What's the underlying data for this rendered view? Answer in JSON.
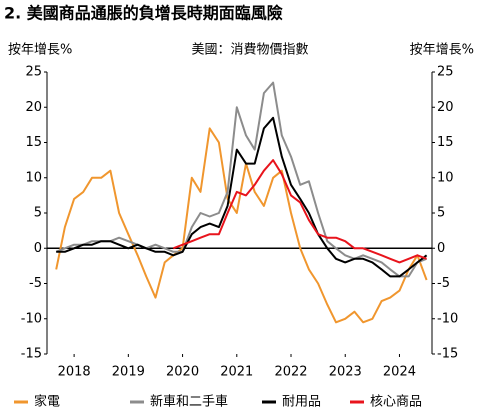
{
  "chart_data": {
    "type": "line",
    "title": "2. 美國商品通脹的負增長時期面臨風險",
    "subtitle": "美國：消費物價指數",
    "ylabel": "按年增長%",
    "y2label": "按年增長%",
    "x": [
      2018.17,
      2018.33,
      2018.5,
      2018.67,
      2018.83,
      2019,
      2019.17,
      2019.33,
      2019.5,
      2019.67,
      2019.83,
      2020,
      2020.17,
      2020.33,
      2020.5,
      2020.67,
      2020.83,
      2021,
      2021.17,
      2021.33,
      2021.5,
      2021.67,
      2021.83,
      2022,
      2022.17,
      2022.33,
      2022.5,
      2022.67,
      2022.83,
      2023,
      2023.17,
      2023.33,
      2023.5,
      2023.67,
      2023.83,
      2024,
      2024.17,
      2024.33,
      2024.5,
      2024.67,
      2024.83,
      2025
    ],
    "xlim": [
      2018,
      2025.1
    ],
    "xticks": [
      {
        "value": 2018.5,
        "label": "2018"
      },
      {
        "value": 2019.5,
        "label": "2019"
      },
      {
        "value": 2020.5,
        "label": "2020"
      },
      {
        "value": 2021.5,
        "label": "2021"
      },
      {
        "value": 2022.5,
        "label": "2022"
      },
      {
        "value": 2023.5,
        "label": "2023"
      },
      {
        "value": 2024.5,
        "label": "2024"
      }
    ],
    "ylim": [
      -15,
      25
    ],
    "yticks": [
      -15,
      -10,
      -5,
      0,
      5,
      10,
      15,
      20,
      25
    ],
    "y2lim": [
      -15,
      25
    ],
    "y2ticks": [
      -15,
      -10,
      -5,
      0,
      5,
      10,
      15,
      20,
      25
    ],
    "legend": "bottom",
    "series": [
      {
        "name": "家電",
        "color": "#f0962e",
        "values": [
          -3,
          3,
          7,
          8,
          10,
          10,
          11,
          5,
          2,
          -1,
          -4,
          -7,
          -2,
          -1,
          0,
          10,
          8,
          17,
          15,
          7,
          5,
          12,
          8,
          6,
          10,
          11,
          5,
          0,
          -3,
          -5,
          -8,
          -10.5,
          -10,
          -9,
          -10.5,
          -10,
          -7.5,
          -7,
          -6,
          -3,
          -1,
          -4.5
        ]
      },
      {
        "name": "新車和二手車",
        "color": "#8c8c8c",
        "values": [
          -0.5,
          0,
          0.5,
          0.5,
          1,
          1,
          1,
          1.5,
          1,
          0.5,
          0,
          0.5,
          0,
          -0.5,
          -0.5,
          3,
          5,
          4.5,
          5,
          8,
          20,
          16,
          14,
          22,
          23.5,
          16,
          13,
          9,
          9.5,
          5,
          1,
          0,
          -1,
          -1.5,
          -1,
          -1.5,
          -2,
          -3,
          -4,
          -4,
          -2,
          -1.5
        ]
      },
      {
        "name": "耐用品",
        "color": "#000000",
        "values": [
          -0.5,
          -0.5,
          0,
          0.5,
          0.5,
          1,
          1,
          0.5,
          0,
          0.5,
          0,
          -0.5,
          -0.5,
          -1,
          -0.5,
          2,
          3,
          3.5,
          3,
          6,
          14,
          12,
          12,
          17,
          18.5,
          13,
          9,
          7,
          5,
          2,
          0,
          -1.5,
          -2,
          -1.5,
          -1.5,
          -2,
          -3,
          -4,
          -4,
          -3,
          -2,
          -1
        ]
      },
      {
        "name": "核心商品",
        "color": "#e8141c",
        "values": [
          null,
          null,
          null,
          null,
          null,
          null,
          null,
          null,
          null,
          null,
          null,
          null,
          null,
          0,
          0.5,
          1,
          1.5,
          2,
          2,
          5,
          8,
          7.5,
          9,
          11,
          12.5,
          10.5,
          7.5,
          6.5,
          4,
          2,
          1.5,
          1.5,
          1,
          0,
          0,
          -0.5,
          -1,
          -1.5,
          -2,
          -1.5,
          -1,
          -1.5
        ]
      }
    ]
  }
}
